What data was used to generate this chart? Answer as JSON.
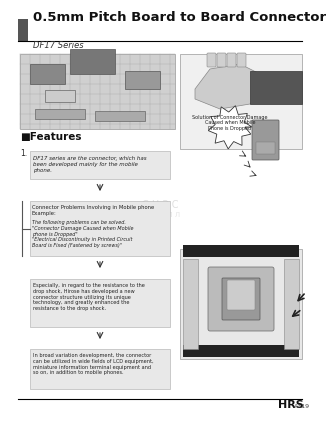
{
  "title": "0.5mm Pitch Board to Board Connector",
  "series": "DF17 Series",
  "bg_color": "#ffffff",
  "header_bar_color": "#555555",
  "header_line_color": "#000000",
  "footer_line_color": "#000000",
  "footer_logo": "HRS",
  "footer_page": "A319",
  "features_title": "■Features",
  "features_num": "1.",
  "text_block1": "DF17 series are the connector, which has\nbeen developed mainly for the mobile\nphone.",
  "text_block2_title": "Connector Problems Involving in Mobile phone\nExample:",
  "text_block2_body": "The following problems can be solved.\n\"Connector Damage Caused when Mobile\nphone is Dropped\"\n\"Electrical Discontinuity in Printed Circuit\nBoard is Fixed (Fastened by screws)\"",
  "text_block3": "Especially, in regard to the resistance to the\ndrop shock, Hirose has developed a new\nconnector structure utilizing its unique\ntechnology, and greatly enhanced the\nresistance to the drop shock.",
  "text_block4": "In broad variation development, the connector\ncan be utilized in wide fields of LCD equipment,\nminiature information terminal equipment and\nso on, in addition to mobile phones.",
  "bubble_text": "Solution of Connector Damage\nCaused when Mobile\nPhone is Dropped",
  "text_box_color": "#e8e8e8",
  "text_box_border": "#aaaaaa",
  "arrow_color": "#333333",
  "watermark_color": "#c0c0c0"
}
